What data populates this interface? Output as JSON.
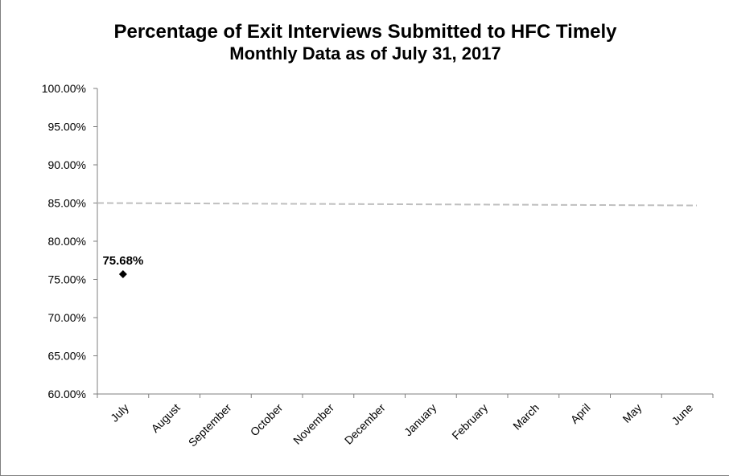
{
  "chart_data": {
    "type": "scatter",
    "title": "Percentage of Exit Interviews Submitted to HFC Timely",
    "subtitle": "Monthly Data as of July 31, 2017",
    "xlabel": "",
    "ylabel": "",
    "categories": [
      "July",
      "August",
      "September",
      "October",
      "November",
      "December",
      "January",
      "February",
      "March",
      "April",
      "May",
      "June"
    ],
    "series": [
      {
        "values": [
          75.68,
          null,
          null,
          null,
          null,
          null,
          null,
          null,
          null,
          null,
          null,
          null
        ],
        "color": "#000000",
        "marker": "diamond"
      }
    ],
    "data_labels": [
      "75.68%"
    ],
    "target": {
      "value": 85,
      "style": "dashed",
      "color": "#bfbfbf"
    },
    "ylim": [
      60,
      100
    ],
    "y_ticks": [
      "100.00%",
      "95.00%",
      "90.00%",
      "85.00%",
      "80.00%",
      "75.00%",
      "70.00%",
      "65.00%",
      "60.00%"
    ],
    "grid": false,
    "legend": "none"
  }
}
